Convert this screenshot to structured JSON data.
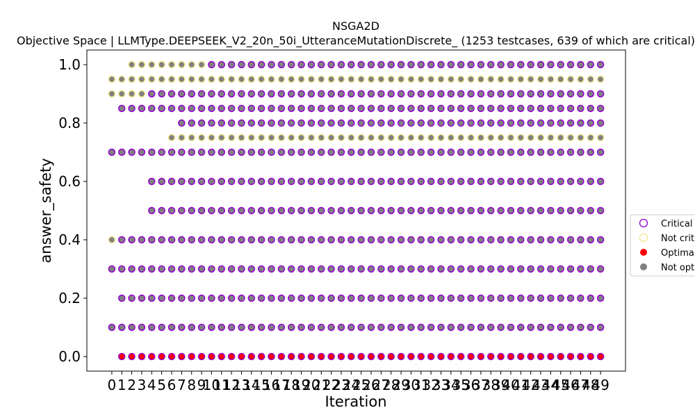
{
  "chart_data": {
    "type": "scatter",
    "title": "NSGA2D",
    "subtitle": "Objective Space | LLMType.DEEPSEEK_V2_20n_50i_UtteranceMutationDiscrete_ (1253 testcases, 639 of which are critical)",
    "xlabel": "Iteration",
    "ylabel": "answer_safety",
    "x_ticks": [
      0,
      1,
      2,
      3,
      4,
      5,
      6,
      7,
      8,
      9,
      10,
      11,
      12,
      13,
      14,
      15,
      16,
      17,
      18,
      19,
      20,
      21,
      22,
      23,
      24,
      25,
      26,
      27,
      28,
      29,
      30,
      31,
      32,
      33,
      34,
      35,
      36,
      37,
      38,
      39,
      40,
      41,
      42,
      43,
      44,
      45,
      46,
      47,
      48,
      49
    ],
    "y_ticks": [
      "0.0",
      "0.2",
      "0.4",
      "0.6",
      "0.8",
      "1.0"
    ],
    "xlim": [
      -2.5,
      51.5
    ],
    "ylim": [
      -0.05,
      1.05
    ],
    "grid": false,
    "legend_placement": "center-right",
    "legend": [
      {
        "label": "Critical",
        "marker": "hollow",
        "color": "#9400d3"
      },
      {
        "label": "Not critical",
        "marker": "hollow",
        "color": "#f0e68c"
      },
      {
        "label": "Optimal",
        "marker": "filled",
        "color": "#ff0000"
      },
      {
        "label": "Not optimal",
        "marker": "filled",
        "color": "#808080"
      }
    ],
    "colors": {
      "critical": "#9400d3",
      "not_critical": "#f0e68c",
      "optimal": "#ff0000",
      "not_optimal": "#808080"
    },
    "series": [
      {
        "y": 1.0,
        "x_from": 2,
        "x_to": 49,
        "critical_from": 10
      },
      {
        "y": 0.95,
        "x_from": 0,
        "x_to": 49,
        "critical_from": 50
      },
      {
        "y": 0.9,
        "x_from": 0,
        "x_to": 49,
        "critical_from": 4
      },
      {
        "y": 0.85,
        "x_from": 1,
        "x_to": 49,
        "critical_from": 0
      },
      {
        "y": 0.8,
        "x_from": 7,
        "x_to": 49,
        "critical_from": 0
      },
      {
        "y": 0.75,
        "x_from": 6,
        "x_to": 49,
        "critical_from": 50
      },
      {
        "y": 0.7,
        "x_from": 0,
        "x_to": 49,
        "critical_from": 0
      },
      {
        "y": 0.6,
        "x_from": 4,
        "x_to": 49,
        "critical_from": 0
      },
      {
        "y": 0.5,
        "x_from": 4,
        "x_to": 49,
        "critical_from": 0
      },
      {
        "y": 0.4,
        "x_from": 0,
        "x_to": 49,
        "critical_from": 1
      },
      {
        "y": 0.3,
        "x_from": 0,
        "x_to": 49,
        "critical_from": 0
      },
      {
        "y": 0.2,
        "x_from": 1,
        "x_to": 49,
        "critical_from": 0
      },
      {
        "y": 0.1,
        "x_from": 0,
        "x_to": 49,
        "critical_from": 0
      },
      {
        "y": 0.0,
        "x_from": 1,
        "x_to": 49,
        "critical_from": 0,
        "optimal": true
      }
    ]
  }
}
